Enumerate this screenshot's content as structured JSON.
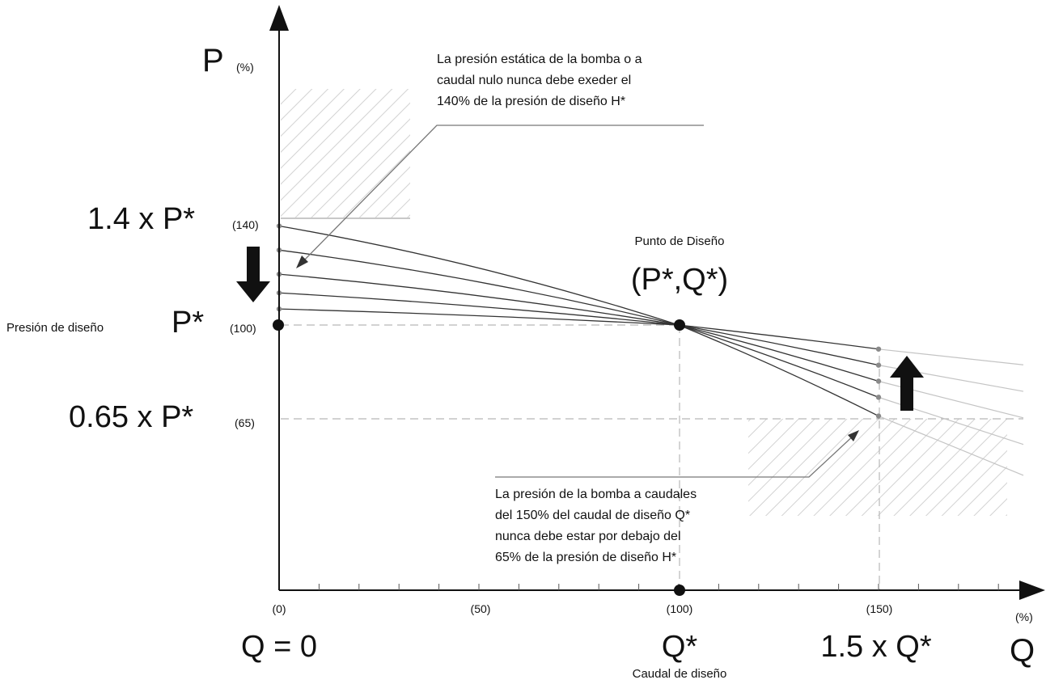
{
  "colors": {
    "ink": "#111111",
    "curve": "#333333",
    "guide": "#b8b8b8",
    "hatch": "#d2d2d2",
    "dot": "#8a8a8a"
  },
  "axes": {
    "y_name": "P",
    "y_unit": "(%)",
    "x_name": "Q",
    "x_unit": "(%)"
  },
  "y_labels": {
    "p140_main": "1.4 x P*",
    "p140_pct": "(140)",
    "p100_prefix": "Presión de diseño",
    "p100_main": "P*",
    "p100_pct": "(100)",
    "p65_main": "0.65 x P*",
    "p65_pct": "(65)"
  },
  "x_labels": {
    "t0": "(0)",
    "t50": "(50)",
    "t100": "(100)",
    "t150": "(150)",
    "q0": "Q = 0",
    "qstar": "Q*",
    "q15": "1.5 x Q*",
    "qstar_caption": "Caudal de diseño"
  },
  "design_point": {
    "caption": "Punto de Diseño",
    "label": "(P*,Q*)",
    "q": 100,
    "p": 100
  },
  "annotations": {
    "top": [
      "La presión estática de la bomba o a",
      "caudal nulo nunca debe exeder el",
      "140% de la presión de diseño H*"
    ],
    "bottom": [
      "La presión de la bomba a caudales",
      "del 150% del caudal de diseño Q*",
      "nunca debe estar por debajo del",
      "65% de la presión de diseño H*"
    ]
  },
  "chart_data": {
    "type": "line",
    "xlabel": "Q",
    "ylabel": "P",
    "x_ticks": [
      0,
      50,
      100,
      150
    ],
    "series": [
      {
        "x": [
          0,
          100,
          150
        ],
        "y": [
          137,
          100,
          66
        ]
      },
      {
        "x": [
          0,
          100,
          150
        ],
        "y": [
          128,
          100,
          73
        ]
      },
      {
        "x": [
          0,
          100,
          150
        ],
        "y": [
          119,
          100,
          79
        ]
      },
      {
        "x": [
          0,
          100,
          150
        ],
        "y": [
          112,
          100,
          85
        ]
      },
      {
        "x": [
          0,
          100,
          150
        ],
        "y": [
          106,
          100,
          91
        ]
      }
    ],
    "limits": {
      "max_shutoff_pressure": 140,
      "min_pressure_at_150": 65
    }
  }
}
